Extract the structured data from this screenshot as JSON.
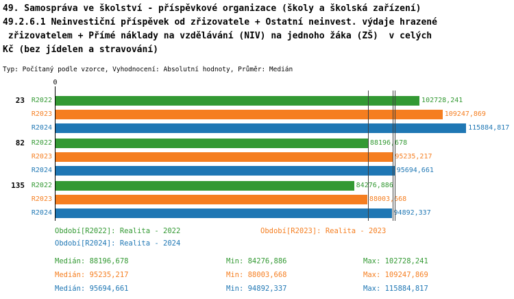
{
  "title": {
    "lines": [
      "49. Samospráva ve školství - příspěvkové organizace (školy a školská zařízení)",
      "49.2.6.1 Neinvestiční příspěvek od zřizovatele + Ostatní neinvest. výdaje hrazené",
      " zřizovatelem + Přímé náklady na vzdělávání (NIV) na jednoho žáka (ZŠ)  v celých",
      "Kč (bez jídelen a stravování)"
    ],
    "subtitle": "Typ: Počítaný podle vzorce, Vyhodnocení: Absolutní hodnoty, Průměr: Medián"
  },
  "colors": {
    "r2022": "#339933",
    "r2023": "#f57e20",
    "r2024": "#1f77b4",
    "axis": "#000000",
    "median_line": "#404040",
    "text": "#000000"
  },
  "chart_data": {
    "type": "bar",
    "orientation": "horizontal",
    "xlim": [
      0,
      118000
    ],
    "x_origin_label": "0",
    "grid": false,
    "groups": [
      "23",
      "82",
      "135"
    ],
    "series": [
      {
        "name": "R2022",
        "color_key": "r2022",
        "values": [
          102728.241,
          88196.678,
          84276.886
        ],
        "value_labels": [
          "102728,241",
          "88196,678",
          "84276,886"
        ]
      },
      {
        "name": "R2023",
        "color_key": "r2023",
        "values": [
          109247.869,
          95235.217,
          88003.668
        ],
        "value_labels": [
          "109247,869",
          "95235,217",
          "88003,668"
        ]
      },
      {
        "name": "R2024",
        "color_key": "r2024",
        "values": [
          115884.817,
          95694.661,
          94892.337
        ],
        "value_labels": [
          "115884,817",
          "95694,661",
          "94892,337"
        ]
      }
    ],
    "median_lines": [
      {
        "series": "R2022",
        "value": 88196.678
      },
      {
        "series": "R2023",
        "value": 95235.217
      },
      {
        "series": "R2024",
        "value": 95694.661
      }
    ],
    "legend": [
      {
        "text": "Období[R2022]: Realita - 2022",
        "color_key": "r2022"
      },
      {
        "text": "Období[R2023]: Realita - 2023",
        "color_key": "r2023"
      },
      {
        "text": "Období[R2024]: Realita - 2024",
        "color_key": "r2024"
      }
    ],
    "stats": [
      {
        "color_key": "r2022",
        "median": "Medián: 88196,678",
        "min": "Min: 84276,886",
        "max": "Max: 102728,241"
      },
      {
        "color_key": "r2023",
        "median": "Medián: 95235,217",
        "min": "Min: 88003,668",
        "max": "Max: 109247,869"
      },
      {
        "color_key": "r2024",
        "median": "Medián: 95694,661",
        "min": "Min: 94892,337",
        "max": "Max: 115884,817"
      }
    ]
  }
}
